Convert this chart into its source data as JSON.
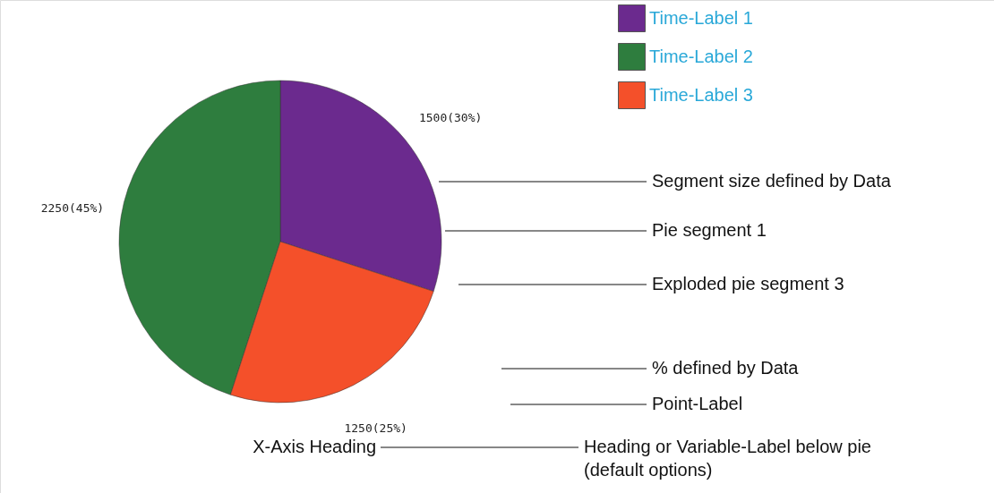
{
  "chart_data": {
    "type": "pie",
    "xlabel": "X-Axis Heading",
    "categories": [
      "Time-Label 1",
      "Time-Label 2",
      "Time-Label 3"
    ],
    "values": [
      1500,
      2250,
      1250
    ],
    "colors": [
      "#6b2a8e",
      "#2e7d3e",
      "#f4502a"
    ],
    "value_labels": [
      "1500(30%)",
      "2250(45%)",
      "1250(25%)"
    ],
    "legend": "top right",
    "annotations": [
      "Segment size defined by Data",
      "Pie segment 1",
      "Exploded pie segment 3",
      "% defined by Data",
      "Point-Label",
      "Heading or Variable-Label below pie\n(default options)"
    ]
  }
}
